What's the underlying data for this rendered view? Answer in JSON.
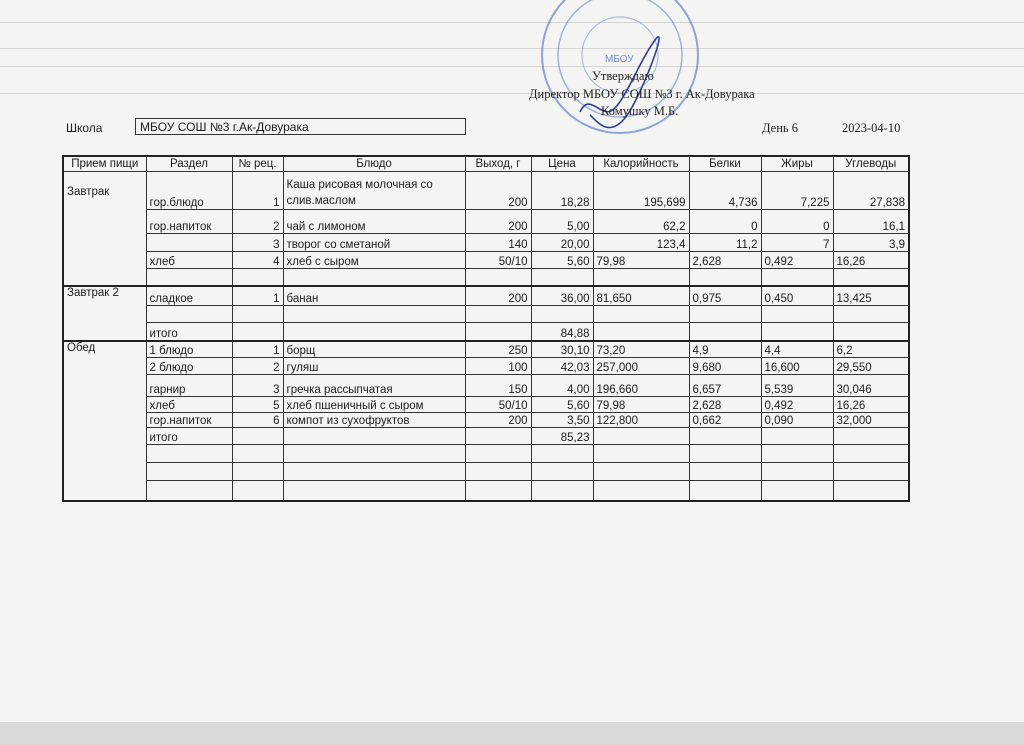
{
  "approval": {
    "line1": "Утверждаю",
    "line2": "Директор МБОУ СОШ №3 г. Ак-Довурака",
    "line3": "Комушку М.Б."
  },
  "stamp": {
    "text": "МБОУ",
    "color": "#3a5fc8"
  },
  "header": {
    "school_label": "Школа",
    "school_value": "МБОУ СОШ №3 г.Ак-Довурака",
    "day": "День 6",
    "date": "2023-04-10"
  },
  "table": {
    "columns": [
      "Прием пищи",
      "Раздел",
      "№ рец.",
      "Блюдо",
      "Выход, г",
      "Цена",
      "Калорийность",
      "Белки",
      "Жиры",
      "Углеводы"
    ],
    "meals": [
      {
        "name": "Завтрак",
        "rows": [
          [
            "гор.блюдо",
            "1",
            "Каша рисовая молочная со слив.маслом",
            "200",
            "18,28",
            "195,699",
            "4,736",
            "7,225",
            "27,838"
          ],
          [
            "гор.напиток",
            "2",
            "чай с лимоном",
            "200",
            "5,00",
            "62,2",
            "0",
            "0",
            "16,1"
          ],
          [
            "",
            "3",
            "творог со сметаной",
            "140",
            "20,00",
            "123,4",
            "11,2",
            "7",
            "3,9"
          ],
          [
            "хлеб",
            "4",
            "хлеб с сыром",
            "50/10",
            "5,60",
            "79,98",
            "2,628",
            "0,492",
            "16,26"
          ],
          [
            "",
            "",
            "",
            "",
            "",
            "",
            "",
            "",
            ""
          ]
        ]
      },
      {
        "name": "Завтрак 2",
        "rows": [
          [
            "сладкое",
            "1",
            "банан",
            "200",
            "36,00",
            "81,650",
            "0,975",
            "0,450",
            "13,425"
          ],
          [
            "",
            "",
            "",
            "",
            "",
            "",
            "",
            "",
            ""
          ],
          [
            "итого",
            "",
            "",
            "",
            "84,88",
            "",
            "",
            "",
            ""
          ]
        ]
      },
      {
        "name": "Обед",
        "rows": [
          [
            "1 блюдо",
            "1",
            "борщ",
            "250",
            "30,10",
            "73,20",
            "4,9",
            "4,4",
            "6,2"
          ],
          [
            "2 блюдо",
            "2",
            "гуляш",
            "100",
            "42,03",
            "257,000",
            "9,680",
            "16,600",
            "29,550"
          ],
          [
            "гарнир",
            "3",
            " гречка рассыпчатая",
            "150",
            "4,00",
            "196,660",
            "6,657",
            "5,539",
            "30,046"
          ],
          [
            "хлеб",
            "5",
            "хлеб пшеничный с сыром",
            "50/10",
            "5,60",
            "79,98",
            "2,628",
            "0,492",
            "16,26"
          ],
          [
            "гор.напиток",
            "6",
            "компот из сухофруктов",
            "200",
            "3,50",
            "122,800",
            "0,662",
            "0,090",
            "32,000"
          ],
          [
            "итого",
            "",
            "",
            "",
            "85,23",
            "",
            "",
            "",
            ""
          ],
          [
            "",
            "",
            "",
            "",
            "",
            "",
            "",
            "",
            ""
          ],
          [
            "",
            "",
            "",
            "",
            "",
            "",
            "",
            "",
            ""
          ],
          [
            "",
            "",
            "",
            "",
            "",
            "",
            "",
            "",
            ""
          ]
        ]
      }
    ]
  }
}
